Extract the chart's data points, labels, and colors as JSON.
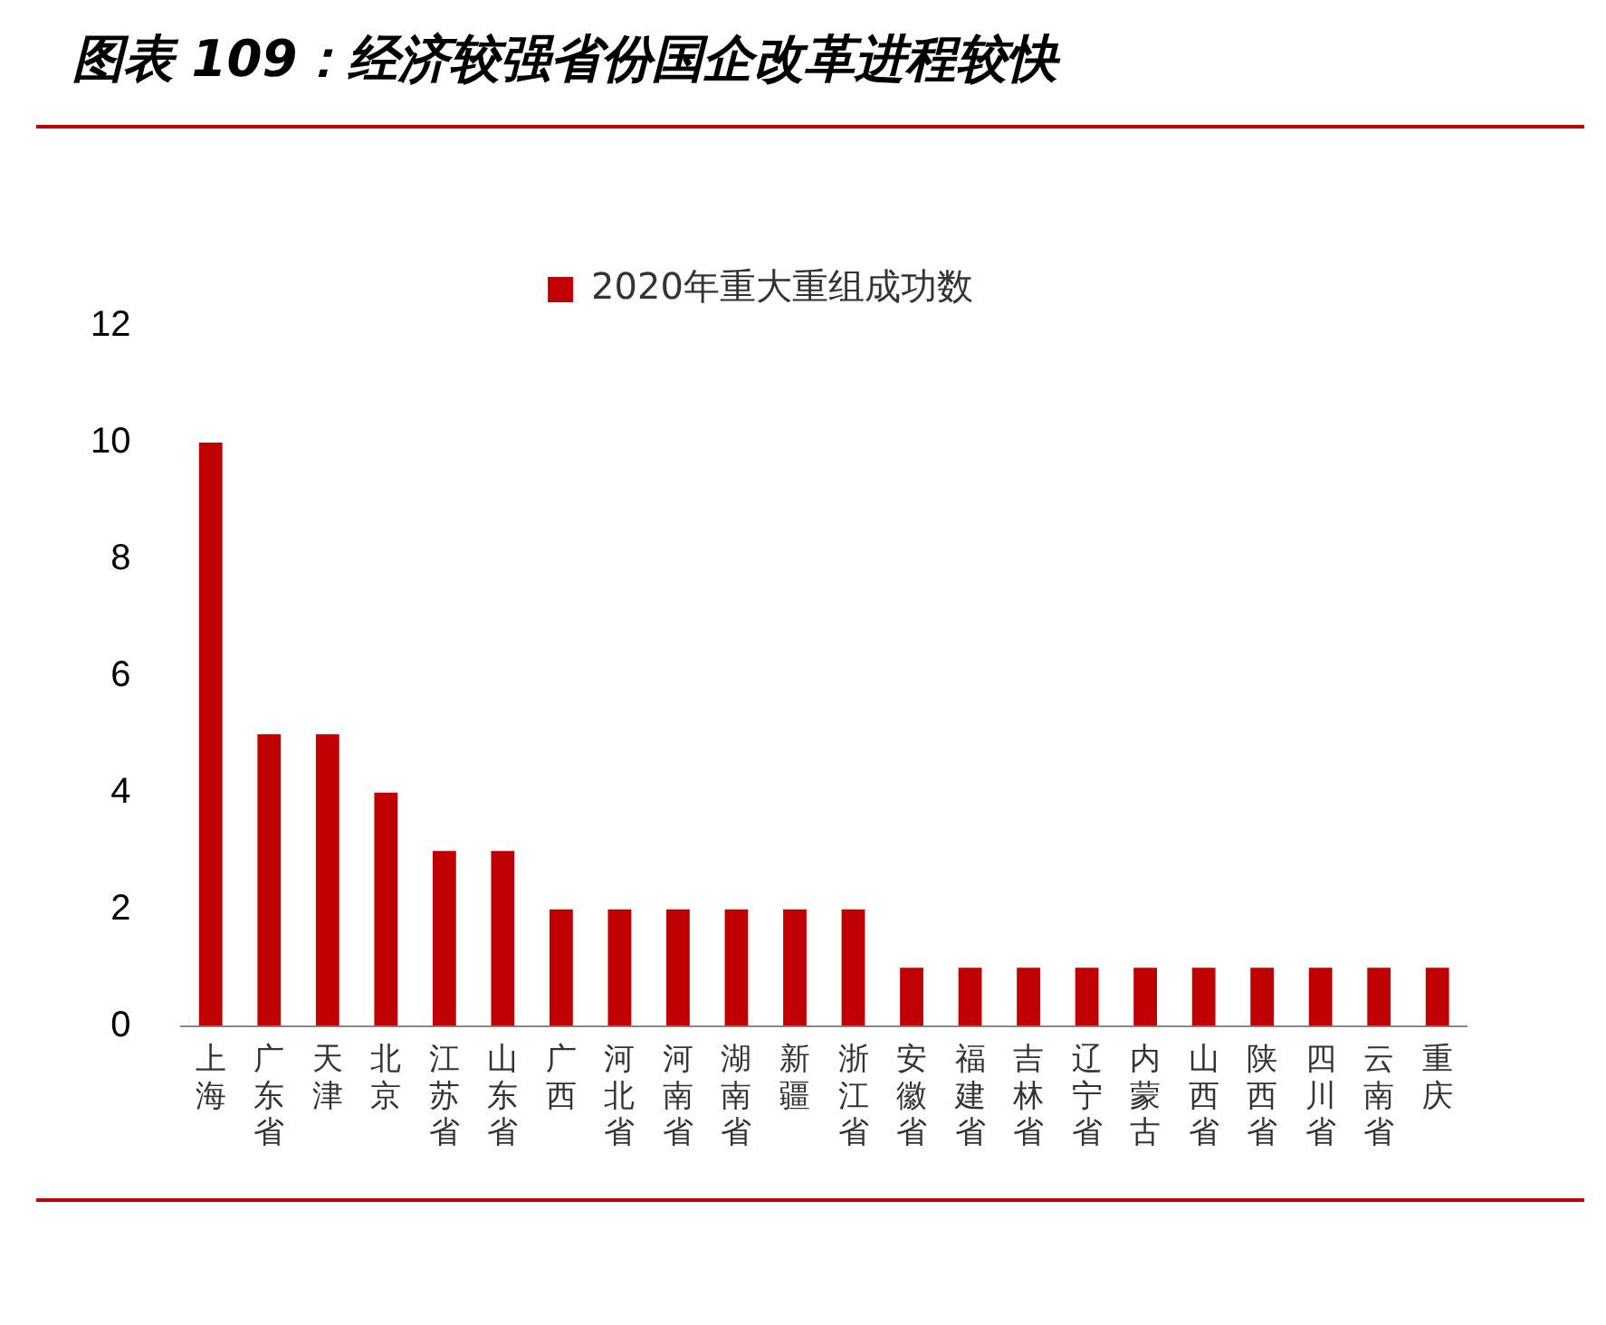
{
  "chart_data": {
    "type": "bar",
    "title": "图表 109：经济较强省份国企改革进程较快",
    "categories": [
      "上海",
      "广东省",
      "天津",
      "北京",
      "江苏省",
      "山东省",
      "广西",
      "河北省",
      "河南省",
      "湖南省",
      "新疆",
      "浙江省",
      "安徽省",
      "福建省",
      "吉林省",
      "辽宁省",
      "内蒙古",
      "山西省",
      "陕西省",
      "四川省",
      "云南省",
      "重庆"
    ],
    "series": [
      {
        "name": "2020年重大重组成功数",
        "color": "#c00000",
        "values": [
          10,
          5,
          5,
          4,
          3,
          3,
          2,
          2,
          2,
          2,
          2,
          2,
          1,
          1,
          1,
          1,
          1,
          1,
          1,
          1,
          1,
          1
        ]
      }
    ],
    "ylim": [
      0,
      12
    ],
    "yticks": [
      0,
      2,
      4,
      6,
      8,
      10,
      12
    ],
    "grid": false,
    "legend": "top"
  }
}
